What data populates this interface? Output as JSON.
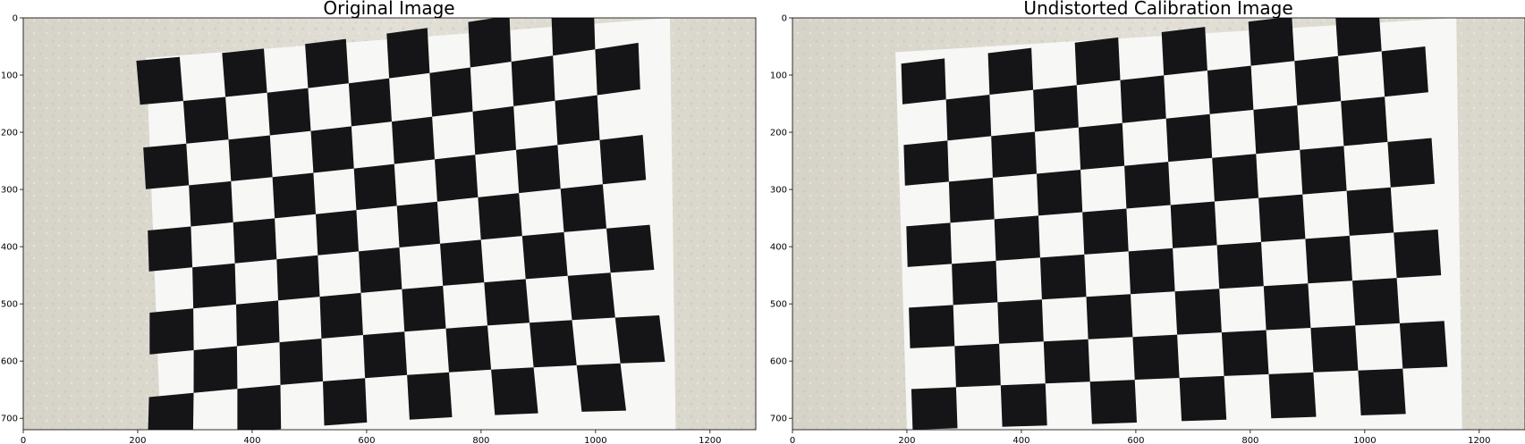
{
  "figure": {
    "panels": [
      {
        "id": "original",
        "title": "Original Image",
        "x_range": [
          0,
          1280
        ],
        "y_range": [
          0,
          720
        ],
        "x_ticks": [
          0,
          200,
          400,
          600,
          800,
          1000,
          1200
        ],
        "y_ticks": [
          0,
          100,
          200,
          300,
          400,
          500,
          600,
          700
        ],
        "image_subject": "checkerboard calibration pattern on textured wall",
        "distortion": "barrel"
      },
      {
        "id": "undistorted",
        "title": "Undistorted Calibration Image",
        "x_range": [
          0,
          1280
        ],
        "y_range": [
          0,
          720
        ],
        "x_ticks": [
          0,
          200,
          400,
          600,
          800,
          1000,
          1200
        ],
        "y_ticks": [
          0,
          100,
          200,
          300,
          400,
          500,
          600,
          700
        ],
        "image_subject": "checkerboard calibration pattern on textured wall",
        "distortion": "none"
      }
    ],
    "board": {
      "cols": 12,
      "rows": 9
    },
    "colors": {
      "wall": "#dcd9cf",
      "paper": "#f7f7f5",
      "square": "#151517"
    }
  }
}
